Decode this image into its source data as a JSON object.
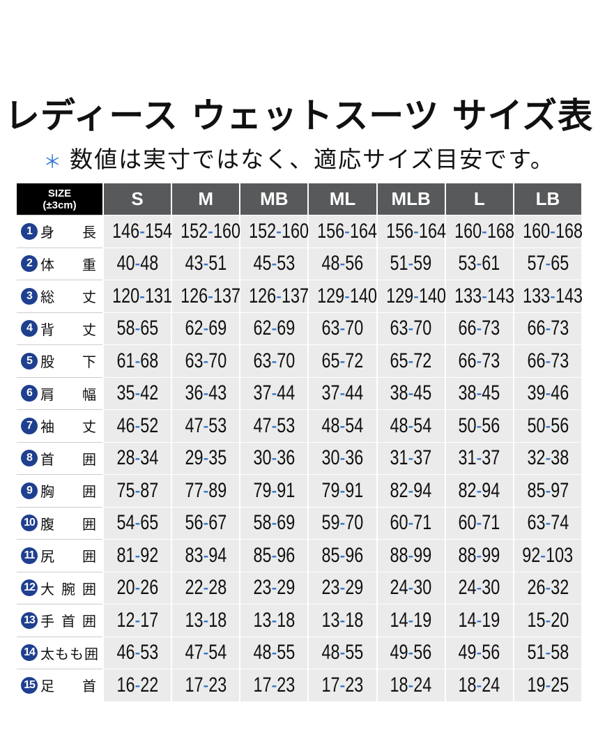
{
  "title": "レディース ウェットスーツ サイズ表",
  "note": {
    "mark": "＊",
    "text": "数値は実寸ではなく、適応サイズ目安です。"
  },
  "table": {
    "corner": {
      "label": "SIZE",
      "sub": "(±3cm)"
    },
    "columns": [
      "S",
      "M",
      "MB",
      "ML",
      "MLB",
      "L",
      "LB"
    ],
    "rows": [
      {
        "no": 1,
        "label": "身長",
        "values": [
          "146-154",
          "152-160",
          "152-160",
          "156-164",
          "156-164",
          "160-168",
          "160-168"
        ]
      },
      {
        "no": 2,
        "label": "体重",
        "values": [
          "40-48",
          "43-51",
          "45-53",
          "48-56",
          "51-59",
          "53-61",
          "57-65"
        ]
      },
      {
        "no": 3,
        "label": "総丈",
        "values": [
          "120-131",
          "126-137",
          "126-137",
          "129-140",
          "129-140",
          "133-143",
          "133-143"
        ]
      },
      {
        "no": 4,
        "label": "背丈",
        "values": [
          "58-65",
          "62-69",
          "62-69",
          "63-70",
          "63-70",
          "66-73",
          "66-73"
        ]
      },
      {
        "no": 5,
        "label": "股下",
        "values": [
          "61-68",
          "63-70",
          "63-70",
          "65-72",
          "65-72",
          "66-73",
          "66-73"
        ]
      },
      {
        "no": 6,
        "label": "肩幅",
        "values": [
          "35-42",
          "36-43",
          "37-44",
          "37-44",
          "38-45",
          "38-45",
          "39-46"
        ]
      },
      {
        "no": 7,
        "label": "袖丈",
        "values": [
          "46-52",
          "47-53",
          "47-53",
          "48-54",
          "48-54",
          "50-56",
          "50-56"
        ]
      },
      {
        "no": 8,
        "label": "首囲",
        "values": [
          "28-34",
          "29-35",
          "30-36",
          "30-36",
          "31-37",
          "31-37",
          "32-38"
        ]
      },
      {
        "no": 9,
        "label": "胸囲",
        "values": [
          "75-87",
          "77-89",
          "79-91",
          "79-91",
          "82-94",
          "82-94",
          "85-97"
        ]
      },
      {
        "no": 10,
        "label": "腹囲",
        "values": [
          "54-65",
          "56-67",
          "58-69",
          "59-70",
          "60-71",
          "60-71",
          "63-74"
        ]
      },
      {
        "no": 11,
        "label": "尻囲",
        "values": [
          "81-92",
          "83-94",
          "85-96",
          "85-96",
          "88-99",
          "88-99",
          "92-103"
        ]
      },
      {
        "no": 12,
        "label": "大腕囲",
        "values": [
          "20-26",
          "22-28",
          "23-29",
          "23-29",
          "24-30",
          "24-30",
          "26-32"
        ]
      },
      {
        "no": 13,
        "label": "手首囲",
        "values": [
          "12-17",
          "13-18",
          "13-18",
          "13-18",
          "14-19",
          "14-19",
          "15-20"
        ]
      },
      {
        "no": 14,
        "label": "太もも囲",
        "values": [
          "46-53",
          "47-54",
          "48-55",
          "48-55",
          "49-56",
          "49-56",
          "51-58"
        ]
      },
      {
        "no": 15,
        "label": "足首",
        "values": [
          "16-22",
          "17-23",
          "17-23",
          "17-23",
          "18-24",
          "18-24",
          "19-25"
        ]
      }
    ]
  }
}
